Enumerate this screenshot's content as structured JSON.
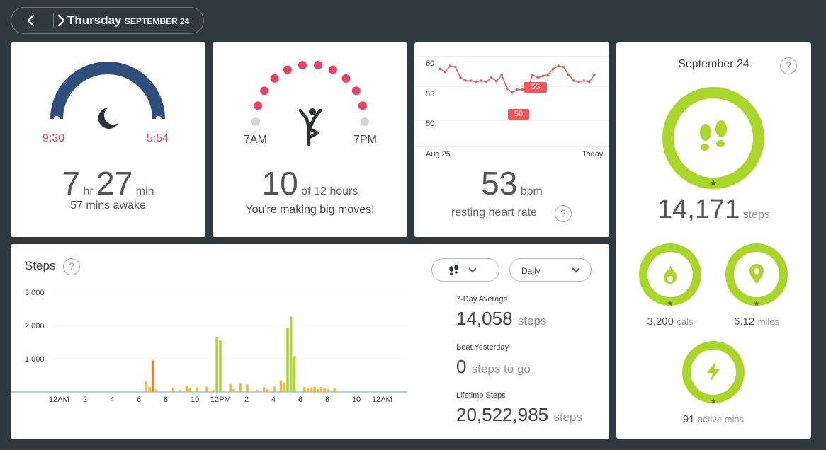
{
  "header": {
    "day": "Thursday",
    "date": "SEPTEMBER 24"
  },
  "sleep": {
    "start": "9:30",
    "end": "5:54",
    "hours": "7",
    "hours_unit": "hr",
    "minutes": "27",
    "minutes_unit": "min",
    "awake": "57 mins awake"
  },
  "hourly": {
    "start_label": "7AM",
    "end_label": "7PM",
    "hours_value": "10",
    "hours_suffix": "of 12 hours",
    "message": "You're making big moves!",
    "hours_met": 10,
    "hours_total": 12,
    "active_color": "#f0405e",
    "inactive_color": "#d5d5d5"
  },
  "heart": {
    "y_ticks": [
      "60",
      "55",
      "50"
    ],
    "x_start": "Aug 25",
    "x_end": "Today",
    "high_label": "55",
    "low_label": "50",
    "bpm": "53",
    "bpm_unit": "bpm",
    "caption": "resting heart rate",
    "series": [
      54.5,
      54,
      55,
      54.8,
      53,
      52.5,
      52.5,
      52.3,
      52.5,
      52.3,
      53,
      52.4,
      53.5,
      51.2,
      50.5,
      51,
      51,
      51,
      53.5,
      53,
      53.3,
      53.5,
      54.5,
      55,
      54.8,
      53.5,
      52.5,
      52.3,
      52.5,
      52.3,
      53.5
    ],
    "line_color": "#f0585c"
  },
  "steps_summary": {
    "date": "September 24",
    "steps": "14,171",
    "steps_unit": "steps",
    "cals": "3,200",
    "cals_unit": "cals",
    "miles": "6.12",
    "miles_unit": "miles",
    "active": "91",
    "active_unit": "active mins",
    "ring_color": "#a8d629"
  },
  "steps_chart": {
    "title": "Steps",
    "view_select": "Daily",
    "y_ticks": [
      "3,000",
      "2,000",
      "1,000"
    ],
    "x_ticks": [
      "12AM",
      "2",
      "4",
      "6",
      "8",
      "10",
      "12PM",
      "2",
      "4",
      "6",
      "8",
      "10",
      "12AM"
    ],
    "avg_label": "7-Day Average",
    "avg_value": "14,058",
    "avg_unit": "steps",
    "beat_label": "Beat Yesterday",
    "beat_value": "0",
    "beat_unit": "steps to go",
    "lifetime_label": "Lifetime Steps",
    "lifetime_value": "20,522,985",
    "lifetime_unit": "steps"
  },
  "chart_data": {
    "type": "bar",
    "x_unit": "hour (15-min bins)",
    "ylim": [
      0,
      3000
    ],
    "y_ticks": [
      1000,
      2000,
      3000
    ],
    "x_ticks": [
      "12AM",
      "2",
      "4",
      "6",
      "8",
      "10",
      "12PM",
      "2",
      "4",
      "6",
      "8",
      "10",
      "12AM"
    ],
    "colors": {
      "low": "#f6b93b",
      "mid": "#f07f2a",
      "high": "#a8d629"
    },
    "bars": [
      {
        "t": 6.5,
        "v": 320,
        "c": "low"
      },
      {
        "t": 6.75,
        "v": 150,
        "c": "low"
      },
      {
        "t": 7.0,
        "v": 950,
        "c": "mid"
      },
      {
        "t": 7.25,
        "v": 80,
        "c": "low"
      },
      {
        "t": 8.5,
        "v": 130,
        "c": "low"
      },
      {
        "t": 9.0,
        "v": 60,
        "c": "low"
      },
      {
        "t": 9.5,
        "v": 170,
        "c": "low"
      },
      {
        "t": 9.75,
        "v": 120,
        "c": "low"
      },
      {
        "t": 10.25,
        "v": 140,
        "c": "low"
      },
      {
        "t": 11.0,
        "v": 160,
        "c": "low"
      },
      {
        "t": 11.5,
        "v": 60,
        "c": "low"
      },
      {
        "t": 11.75,
        "v": 1650,
        "c": "high"
      },
      {
        "t": 12.0,
        "v": 1550,
        "c": "high"
      },
      {
        "t": 12.75,
        "v": 240,
        "c": "low"
      },
      {
        "t": 13.0,
        "v": 80,
        "c": "low"
      },
      {
        "t": 13.5,
        "v": 250,
        "c": "low"
      },
      {
        "t": 14.0,
        "v": 230,
        "c": "low"
      },
      {
        "t": 14.75,
        "v": 60,
        "c": "low"
      },
      {
        "t": 15.25,
        "v": 140,
        "c": "low"
      },
      {
        "t": 15.5,
        "v": 90,
        "c": "low"
      },
      {
        "t": 16.0,
        "v": 160,
        "c": "low"
      },
      {
        "t": 16.5,
        "v": 350,
        "c": "low"
      },
      {
        "t": 16.75,
        "v": 280,
        "c": "low"
      },
      {
        "t": 17.0,
        "v": 1920,
        "c": "high"
      },
      {
        "t": 17.25,
        "v": 2270,
        "c": "high"
      },
      {
        "t": 17.5,
        "v": 1080,
        "c": "high"
      },
      {
        "t": 18.25,
        "v": 150,
        "c": "low"
      },
      {
        "t": 18.5,
        "v": 100,
        "c": "low"
      },
      {
        "t": 18.75,
        "v": 130,
        "c": "low"
      },
      {
        "t": 19.0,
        "v": 160,
        "c": "low"
      },
      {
        "t": 19.25,
        "v": 80,
        "c": "low"
      },
      {
        "t": 19.5,
        "v": 150,
        "c": "low"
      },
      {
        "t": 19.75,
        "v": 110,
        "c": "low"
      },
      {
        "t": 20.0,
        "v": 90,
        "c": "low"
      },
      {
        "t": 20.5,
        "v": 120,
        "c": "low"
      }
    ]
  }
}
